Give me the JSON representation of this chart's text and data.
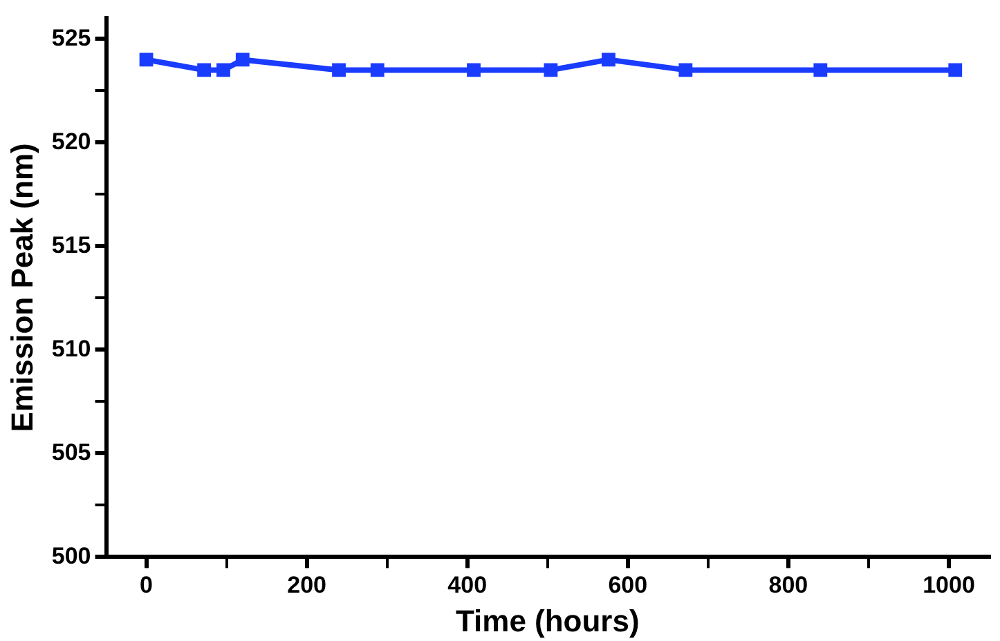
{
  "chart_data": {
    "type": "line",
    "xlabel": "Time (hours)",
    "ylabel": "Emission Peak (nm)",
    "x": [
      0,
      72,
      96,
      120,
      240,
      288,
      408,
      504,
      576,
      672,
      840,
      1008
    ],
    "series": [
      {
        "color": "#1a3cff",
        "values": [
          524,
          523.5,
          523.5,
          524,
          523.5,
          523.5,
          523.5,
          523.5,
          524,
          523.5,
          523.5,
          523.5
        ]
      }
    ],
    "xlim": [
      -50,
      1050
    ],
    "xticks": [
      0,
      {
        "value": 100,
        "label": null
      },
      200,
      {
        "value": 300,
        "label": null
      },
      400,
      {
        "value": 500,
        "label": null
      },
      600,
      {
        "value": 700,
        "label": null
      },
      800,
      {
        "value": 900,
        "label": null
      },
      1000
    ],
    "ylim": [
      500,
      526
    ],
    "yticks": [
      500,
      {
        "value": 502.5,
        "label": null
      },
      505,
      {
        "value": 507.5,
        "label": null
      },
      510,
      {
        "value": 512.5,
        "label": null
      },
      515,
      {
        "value": 517.5,
        "label": null
      },
      520,
      {
        "value": 522.5,
        "label": null
      },
      525
    ],
    "marker": "square",
    "line_style": "solid",
    "grid": false,
    "legend": false
  }
}
